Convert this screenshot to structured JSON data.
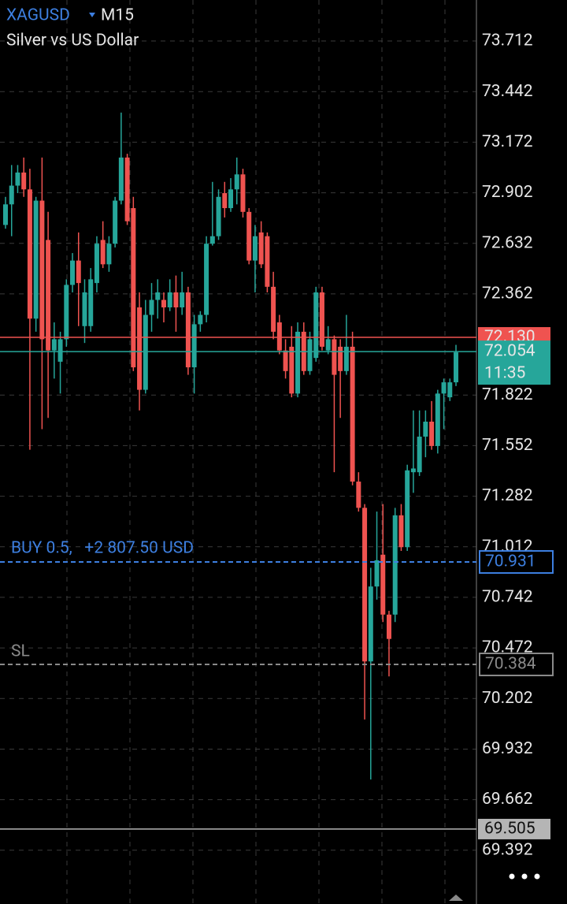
{
  "chart_data": {
    "type": "candlestick",
    "symbol": "XAGUSD",
    "timeframe": "M15",
    "subtitle": "Silver vs US Dollar",
    "up_color": "#26a69a",
    "down_color": "#ef5350",
    "ylim": [
      69.105,
      73.931
    ],
    "yticks": [
      73.712,
      73.442,
      73.172,
      72.902,
      72.632,
      72.362,
      71.822,
      71.552,
      71.282,
      71.012,
      70.742,
      70.472,
      70.202,
      69.932,
      69.662,
      69.392
    ],
    "grid": true,
    "open": [
      72.73,
      72.84,
      72.94,
      73.01,
      72.92,
      72.23,
      72.86,
      72.65,
      72.06,
      72.0,
      72.12,
      72.41,
      72.54,
      72.19,
      72.19,
      72.42,
      72.65,
      72.52,
      72.63,
      72.86,
      73.09,
      72.82,
      72.29,
      71.85,
      72.25,
      72.33,
      72.33,
      72.29,
      72.37,
      72.29,
      72.37,
      71.97,
      72.2,
      72.25,
      72.63,
      72.67,
      72.9,
      72.82,
      72.92,
      73.0,
      72.8,
      72.54,
      72.69,
      72.67,
      72.4,
      72.21,
      72.06,
      72.08,
      71.83,
      72.16,
      71.95,
      72.02,
      72.37,
      72.06,
      72.12,
      72.08,
      71.95,
      72.08,
      71.36,
      71.22,
      70.4,
      70.8,
      70.97,
      70.65,
      70.65,
      71.18,
      71.01,
      71.41,
      71.41,
      71.6,
      71.68,
      71.55,
      71.83,
      71.81,
      71.89
    ],
    "high": [
      72.88,
      73.05,
      73.05,
      73.09,
      73.03,
      72.88,
      73.09,
      72.8,
      72.21,
      72.16,
      72.44,
      72.58,
      72.69,
      72.44,
      72.5,
      72.67,
      72.75,
      72.67,
      72.88,
      73.33,
      73.11,
      72.88,
      72.37,
      72.33,
      72.42,
      72.44,
      72.37,
      72.44,
      72.46,
      72.48,
      72.4,
      72.25,
      72.27,
      72.67,
      72.96,
      72.92,
      72.96,
      72.98,
      73.09,
      73.03,
      72.82,
      72.73,
      72.75,
      72.69,
      72.48,
      72.25,
      72.12,
      72.19,
      72.21,
      72.21,
      72.16,
      72.4,
      72.4,
      72.19,
      72.14,
      72.12,
      72.25,
      72.16,
      71.41,
      71.24,
      70.9,
      71.2,
      71.24,
      70.67,
      71.22,
      71.24,
      71.45,
      71.74,
      71.74,
      71.74,
      71.79,
      71.85,
      71.91,
      71.91,
      72.09
    ],
    "low": [
      72.71,
      72.67,
      72.9,
      72.88,
      71.53,
      72.16,
      71.64,
      71.7,
      71.91,
      71.83,
      72.08,
      72.37,
      72.19,
      72.1,
      72.16,
      72.37,
      72.5,
      72.48,
      72.61,
      72.84,
      72.73,
      71.95,
      71.74,
      71.83,
      72.16,
      72.23,
      72.21,
      72.27,
      72.16,
      72.25,
      71.93,
      71.83,
      72.16,
      72.21,
      72.62,
      72.65,
      72.77,
      72.8,
      72.84,
      72.77,
      72.52,
      72.37,
      72.5,
      72.37,
      72.12,
      72.04,
      71.91,
      71.81,
      71.81,
      71.93,
      71.93,
      72.0,
      72.06,
      72.04,
      71.41,
      71.7,
      71.93,
      71.34,
      71.2,
      70.09,
      69.77,
      70.73,
      70.61,
      70.32,
      70.61,
      70.99,
      70.99,
      71.3,
      71.39,
      71.49,
      71.53,
      71.51,
      71.64,
      71.79,
      71.87
    ],
    "close": [
      72.84,
      72.94,
      73.01,
      72.92,
      72.23,
      72.86,
      72.12,
      72.06,
      72.12,
      72.12,
      72.41,
      72.54,
      72.42,
      72.37,
      72.44,
      72.63,
      72.52,
      72.63,
      72.86,
      73.09,
      72.75,
      71.97,
      71.85,
      72.25,
      72.33,
      72.37,
      72.29,
      72.37,
      72.29,
      72.37,
      71.97,
      72.2,
      72.25,
      72.63,
      72.67,
      72.88,
      72.82,
      72.92,
      73.0,
      72.8,
      72.54,
      72.67,
      72.52,
      72.4,
      72.16,
      72.06,
      71.95,
      71.83,
      72.16,
      71.95,
      72.12,
      72.37,
      72.08,
      72.12,
      71.93,
      71.95,
      72.08,
      71.36,
      71.22,
      70.4,
      70.8,
      70.94,
      70.65,
      70.52,
      71.18,
      71.01,
      71.42,
      71.43,
      71.6,
      71.68,
      71.55,
      71.83,
      71.89,
      71.89,
      72.05
    ],
    "ask": {
      "value": 72.13,
      "label": "72.130",
      "color": "#ef5350"
    },
    "bid": {
      "value": 72.054,
      "countdown": "11:35",
      "color": "#26a69a"
    },
    "position": {
      "label": "BUY 0.5,   +2 807.50 USD",
      "price": 70.931,
      "color": "#3d7fe0"
    },
    "stop_loss": {
      "label": "SL",
      "price": 70.384,
      "color": "#8a8a8a"
    },
    "price_line": {
      "price": 69.505,
      "color": "#b5b5b5"
    }
  }
}
